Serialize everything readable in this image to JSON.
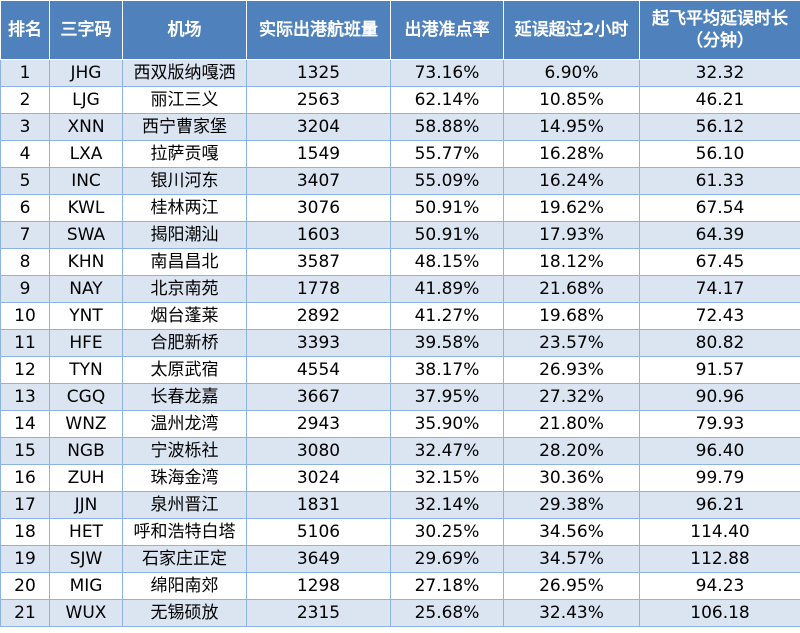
{
  "table": {
    "headers": [
      "排名",
      "三字码",
      "机场",
      "实际出港航班量",
      "出港准点率",
      "延误超过2小时",
      "起飞平均延误时长\n（分钟）"
    ],
    "rows": [
      [
        "1",
        "JHG",
        "西双版纳嘎洒",
        "1325",
        "73.16%",
        "6.90%",
        "32.32"
      ],
      [
        "2",
        "LJG",
        "丽江三义",
        "2563",
        "62.14%",
        "10.85%",
        "46.21"
      ],
      [
        "3",
        "XNN",
        "西宁曹家堡",
        "3204",
        "58.88%",
        "14.95%",
        "56.12"
      ],
      [
        "4",
        "LXA",
        "拉萨贡嘎",
        "1549",
        "55.77%",
        "16.28%",
        "56.10"
      ],
      [
        "5",
        "INC",
        "银川河东",
        "3407",
        "55.09%",
        "16.24%",
        "61.33"
      ],
      [
        "6",
        "KWL",
        "桂林两江",
        "3076",
        "50.91%",
        "19.62%",
        "67.54"
      ],
      [
        "7",
        "SWA",
        "揭阳潮汕",
        "1603",
        "50.91%",
        "17.93%",
        "64.39"
      ],
      [
        "8",
        "KHN",
        "南昌昌北",
        "3587",
        "48.15%",
        "18.12%",
        "67.45"
      ],
      [
        "9",
        "NAY",
        "北京南苑",
        "1778",
        "41.89%",
        "21.68%",
        "74.17"
      ],
      [
        "10",
        "YNT",
        "烟台蓬莱",
        "2892",
        "41.27%",
        "19.68%",
        "72.43"
      ],
      [
        "11",
        "HFE",
        "合肥新桥",
        "3393",
        "39.58%",
        "23.57%",
        "80.82"
      ],
      [
        "12",
        "TYN",
        "太原武宿",
        "4554",
        "38.17%",
        "26.93%",
        "91.57"
      ],
      [
        "13",
        "CGQ",
        "长春龙嘉",
        "3667",
        "37.95%",
        "27.32%",
        "90.96"
      ],
      [
        "14",
        "WNZ",
        "温州龙湾",
        "2943",
        "35.90%",
        "21.80%",
        "79.93"
      ],
      [
        "15",
        "NGB",
        "宁波栎社",
        "3080",
        "32.47%",
        "28.20%",
        "96.40"
      ],
      [
        "16",
        "ZUH",
        "珠海金湾",
        "3024",
        "32.15%",
        "30.36%",
        "99.79"
      ],
      [
        "17",
        "JJN",
        "泉州晋江",
        "1831",
        "32.14%",
        "29.38%",
        "96.21"
      ],
      [
        "18",
        "HET",
        "呼和浩特白塔",
        "5106",
        "30.25%",
        "34.56%",
        "114.40"
      ],
      [
        "19",
        "SJW",
        "石家庄正定",
        "3649",
        "29.69%",
        "34.57%",
        "112.88"
      ],
      [
        "20",
        "MIG",
        "绵阳南郊",
        "1298",
        "27.18%",
        "26.95%",
        "94.23"
      ],
      [
        "21",
        "WUX",
        "无锡硕放",
        "2315",
        "25.68%",
        "32.43%",
        "106.18"
      ]
    ]
  },
  "colors": {
    "header_bg": "#4f81bd",
    "header_text": "#ffffff",
    "row_odd_bg": "#dbe5f1",
    "row_even_bg": "#ffffff",
    "border": "#8db3e2"
  }
}
